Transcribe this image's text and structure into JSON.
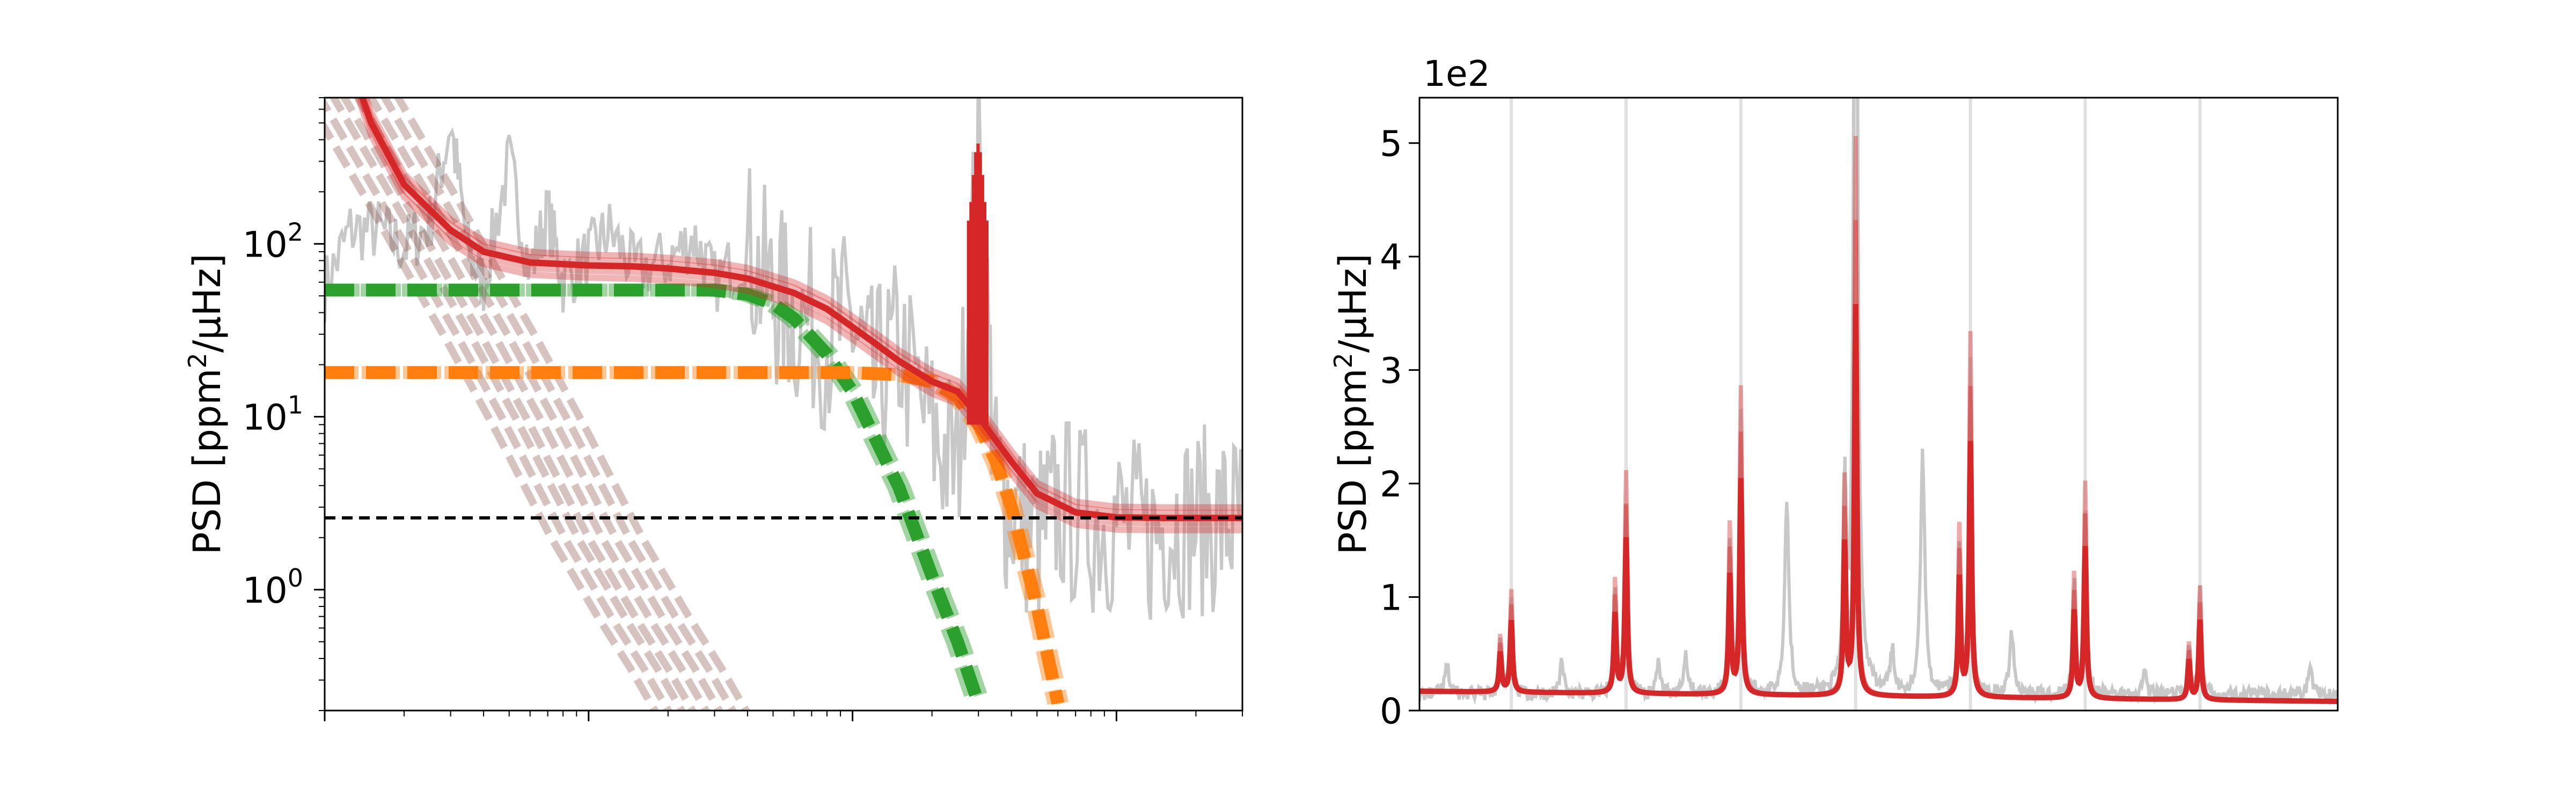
{
  "colors": {
    "data": "#c8c8c8",
    "model": "#d62728",
    "granulation_1": "#2ca02c",
    "granulation_2": "#ff7f0e",
    "activity": "#8c564b",
    "white_noise": "#000000",
    "mode_markers": "#e0e0e0"
  },
  "chart_data": [
    {
      "type": "line",
      "panel": "left",
      "yscale": "log",
      "xscale": "log",
      "ylabel": "PSD [ppm²/μHz]",
      "ylabel_base": "PSD [ppm",
      "ylabel_sup": "2",
      "ylabel_tail": "/μHz]",
      "yticks": [
        {
          "value": 1,
          "mant": "10",
          "exp": "0"
        },
        {
          "value": 10,
          "mant": "10",
          "exp": "1"
        },
        {
          "value": 100,
          "mant": "10",
          "exp": "2"
        }
      ],
      "ylim": [
        0.2,
        700
      ],
      "xlim": [
        1,
        3000
      ],
      "grid": false,
      "series": [
        {
          "role": "power-spectrum",
          "x": [
            1,
            1.25,
            1.6,
            2,
            2.5,
            3,
            3.5,
            4,
            5,
            6,
            7,
            8,
            10,
            12,
            15,
            20,
            25,
            30,
            40,
            50,
            60,
            80,
            100,
            120,
            150,
            200,
            250,
            300,
            350,
            400,
            500,
            600,
            800,
            1000,
            1300,
            1600,
            2000,
            2500,
            3000
          ],
          "y": [
            55,
            120,
            120,
            95,
            130,
            500,
            90,
            60,
            300,
            70,
            150,
            60,
            85,
            120,
            70,
            80,
            110,
            60,
            90,
            50,
            40,
            30,
            35,
            15,
            25,
            8,
            5,
            350,
            4,
            3,
            2,
            3,
            2.5,
            2.5,
            2,
            2.5,
            2.5,
            2.5,
            2.5
          ]
        },
        {
          "role": "background-fit",
          "x": [
            1,
            1.5,
            2,
            3,
            4,
            6,
            10,
            15,
            20,
            30,
            40,
            60,
            80,
            100,
            120,
            150,
            200,
            250,
            300,
            400,
            500,
            700,
            1000,
            1500,
            2000,
            3000
          ],
          "y": [
            3000,
            500,
            220,
            120,
            90,
            78,
            75,
            74,
            72,
            68,
            63,
            52,
            42,
            33,
            27,
            21,
            16,
            14,
            10,
            5.5,
            3.6,
            2.8,
            2.62,
            2.6,
            2.6,
            2.6
          ]
        },
        {
          "role": "granulation-component-1",
          "x": [
            1,
            5,
            10,
            20,
            30,
            40,
            50,
            60,
            80,
            100,
            150,
            200,
            250,
            300
          ],
          "y": [
            54,
            54,
            54,
            54,
            54,
            51,
            45,
            37,
            23,
            14,
            3.9,
            1.2,
            0.5,
            0.22
          ]
        },
        {
          "role": "granulation-component-2",
          "x": [
            1,
            10,
            50,
            100,
            150,
            200,
            250,
            300,
            350,
            400,
            450,
            500,
            600
          ],
          "y": [
            18,
            18,
            18,
            18,
            17.5,
            16,
            13,
            9,
            5.5,
            3,
            1.5,
            0.8,
            0.22
          ]
        },
        {
          "role": "activity-component",
          "x": [
            1,
            2,
            3,
            4,
            6,
            10,
            15,
            20,
            30
          ],
          "y": [
            1100,
            180,
            60,
            28,
            9,
            2,
            0.7,
            0.35,
            0.12
          ]
        },
        {
          "role": "white-noise-level",
          "x": [
            1,
            3000
          ],
          "y": [
            2.6,
            2.6
          ]
        }
      ]
    },
    {
      "type": "line",
      "panel": "right",
      "ylabel": "PSD [ppm²/μHz]",
      "ylabel_base": "PSD [ppm",
      "ylabel_sup": "2",
      "ylabel_tail": "/μHz]",
      "offset_label": "1e2",
      "ylim": [
        0,
        5.4
      ],
      "yticks": [
        "0",
        "1",
        "2",
        "3",
        "4",
        "5"
      ],
      "xlim": [
        0,
        100
      ],
      "grid": false,
      "mode_marker_x": [
        10,
        22.5,
        35,
        47.5,
        60,
        72.5,
        85
      ],
      "modes": [
        {
          "x": 8.8,
          "h": 0.5
        },
        {
          "x": 10,
          "h": 0.9
        },
        {
          "x": 21.3,
          "h": 1.0
        },
        {
          "x": 22.5,
          "h": 1.95
        },
        {
          "x": 33.8,
          "h": 1.5
        },
        {
          "x": 35,
          "h": 2.7
        },
        {
          "x": 46.3,
          "h": 1.9
        },
        {
          "x": 47.5,
          "h": 4.9
        },
        {
          "x": 58.8,
          "h": 1.5
        },
        {
          "x": 60,
          "h": 3.2
        },
        {
          "x": 71.3,
          "h": 1.1
        },
        {
          "x": 72.5,
          "h": 1.9
        },
        {
          "x": 83.8,
          "h": 0.5
        },
        {
          "x": 85,
          "h": 1.0
        }
      ],
      "baseline": [
        0.17,
        0.08
      ],
      "data_peaks": [
        {
          "x": 3,
          "h": 0.25
        },
        {
          "x": 15.5,
          "h": 0.3
        },
        {
          "x": 26,
          "h": 0.25
        },
        {
          "x": 29,
          "h": 0.35
        },
        {
          "x": 40,
          "h": 1.7
        },
        {
          "x": 47.5,
          "h": 5.4
        },
        {
          "x": 51.5,
          "h": 0.35
        },
        {
          "x": 54.8,
          "h": 2.1
        },
        {
          "x": 64.5,
          "h": 0.55
        },
        {
          "x": 79,
          "h": 0.2
        },
        {
          "x": 97,
          "h": 0.25
        }
      ]
    }
  ]
}
